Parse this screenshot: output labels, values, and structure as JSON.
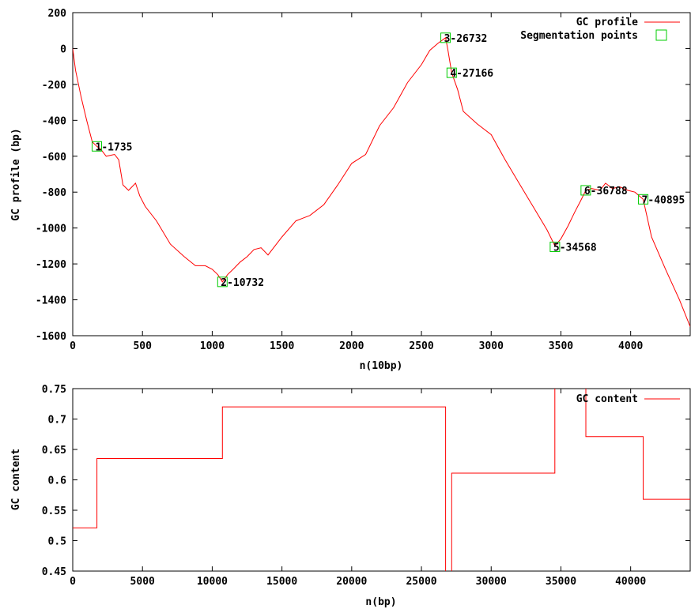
{
  "chart_data": [
    {
      "type": "line",
      "xlabel": "n(10bp)",
      "ylabel": "GC profile (bp)",
      "xlim": [
        0,
        4427
      ],
      "ylim": [
        -1600,
        200
      ],
      "xticks": [
        0,
        500,
        1000,
        1500,
        2000,
        2500,
        3000,
        3500,
        4000
      ],
      "yticks": [
        200,
        0,
        -200,
        -400,
        -600,
        -800,
        -1000,
        -1200,
        -1400,
        -1600
      ],
      "legend_position": "top-right",
      "series": [
        {
          "name": "GC profile",
          "color": "#ff0000",
          "x": [
            0,
            20,
            60,
            100,
            140,
            173,
            200,
            240,
            300,
            330,
            360,
            400,
            450,
            480,
            520,
            600,
            700,
            800,
            880,
            950,
            1000,
            1040,
            1073,
            1110,
            1150,
            1200,
            1250,
            1300,
            1350,
            1400,
            1500,
            1600,
            1700,
            1800,
            1900,
            2000,
            2100,
            2200,
            2300,
            2400,
            2500,
            2560,
            2620,
            2673,
            2690,
            2717,
            2760,
            2800,
            2900,
            3000,
            3100,
            3200,
            3300,
            3400,
            3457,
            3500,
            3550,
            3600,
            3640,
            3678,
            3720,
            3780,
            3820,
            3870,
            3920,
            3980,
            4030,
            4090,
            4150,
            4250,
            4350,
            4427
          ],
          "y": [
            0,
            -120,
            -270,
            -400,
            -520,
            -545,
            -560,
            -600,
            -590,
            -620,
            -760,
            -790,
            -750,
            -820,
            -880,
            -960,
            -1090,
            -1160,
            -1210,
            -1210,
            -1230,
            -1260,
            -1300,
            -1260,
            -1230,
            -1190,
            -1160,
            -1120,
            -1110,
            -1150,
            -1050,
            -960,
            -930,
            -870,
            -760,
            -640,
            -590,
            -430,
            -330,
            -190,
            -90,
            -10,
            30,
            60,
            -10,
            -135,
            -230,
            -350,
            -420,
            -480,
            -620,
            -750,
            -880,
            -1010,
            -1100,
            -1060,
            -990,
            -910,
            -850,
            -790,
            -780,
            -790,
            -750,
            -780,
            -770,
            -790,
            -800,
            -840,
            -1050,
            -1230,
            -1400,
            -1550
          ]
        },
        {
          "name": "Segmentation points",
          "color": "#00cc00",
          "points": [
            {
              "x": 173,
              "y": -545,
              "label": "1-1735"
            },
            {
              "x": 1073,
              "y": -1300,
              "label": "2-10732"
            },
            {
              "x": 2673,
              "y": 60,
              "label": "3-26732"
            },
            {
              "x": 2717,
              "y": -135,
              "label": "4-27166"
            },
            {
              "x": 3457,
              "y": -1105,
              "label": "5-34568"
            },
            {
              "x": 3678,
              "y": -790,
              "label": "6-36788"
            },
            {
              "x": 4090,
              "y": -840,
              "label": "7-40895"
            }
          ]
        }
      ]
    },
    {
      "type": "line",
      "xlabel": "n(bp)",
      "ylabel": "GC content",
      "xlim": [
        0,
        44270
      ],
      "ylim": [
        0.45,
        0.75
      ],
      "xticks": [
        0,
        5000,
        10000,
        15000,
        20000,
        25000,
        30000,
        35000,
        40000
      ],
      "yticks": [
        "0.75",
        "0.7",
        "0.65",
        "0.6",
        "0.55",
        "0.5",
        "0.45"
      ],
      "legend_position": "top-right",
      "series": [
        {
          "name": "GC content",
          "color": "#ff0000",
          "x": [
            0,
            1735,
            1735,
            10732,
            10732,
            26732,
            26732,
            27166,
            27166,
            34568,
            34568,
            36788,
            36788,
            40895,
            40895,
            44270
          ],
          "y": [
            0.521,
            0.521,
            0.635,
            0.635,
            0.72,
            0.72,
            0.44,
            0.44,
            0.611,
            0.611,
            0.78,
            0.78,
            0.671,
            0.671,
            0.568,
            0.568
          ]
        }
      ]
    }
  ]
}
